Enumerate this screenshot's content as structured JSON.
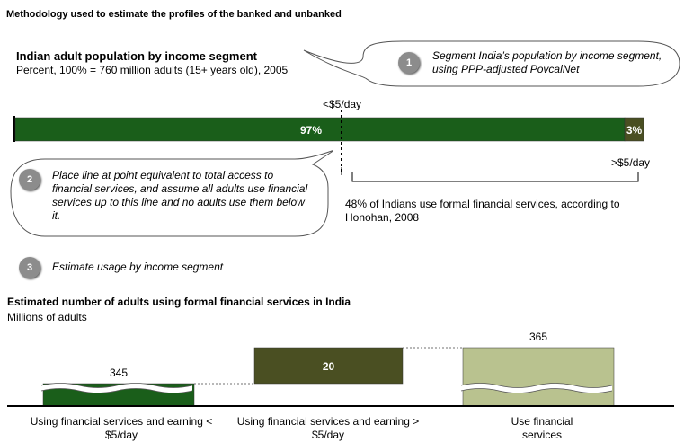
{
  "title": "Methodology used to estimate the profiles of the banked and unbanked",
  "top_chart": {
    "title": "Indian adult population by income segment",
    "subtitle": "Percent, 100% = 760 million adults (15+ years old), 2005",
    "segments": [
      {
        "label": "97%",
        "value": 97,
        "color": "#1a5e1a"
      },
      {
        "label": "3%",
        "value": 3,
        "color": "#4a4f22"
      }
    ],
    "marker_top_label": "<$5/day",
    "marker_right_label": ">$5/day",
    "annotation": "48% of Indians use formal financial services, according to Honohan, 2008"
  },
  "callouts": [
    {
      "number": "1",
      "text": "Segment India’s population by income segment, using PPP-adjusted PovcalNet"
    },
    {
      "number": "2",
      "text": "Place line at point equivalent to total access to financial services, and assume all adults use financial services up to this line and no adults use them below it."
    },
    {
      "number": "3",
      "text": "Estimate usage by income segment"
    }
  ],
  "bottom_chart": {
    "title": "Estimated number of adults using formal financial services in India",
    "subtitle": "Millions of adults"
  },
  "chart_data": [
    {
      "type": "bar",
      "title": "Indian adult population by income segment",
      "subtitle": "Percent, 100% = 760 million adults (15+ years old), 2005",
      "categories": [
        "<$5/day",
        ">$5/day"
      ],
      "values": [
        97,
        3
      ],
      "orientation": "horizontal-stacked",
      "colors": [
        "#1a5e1a",
        "#4a4f22"
      ]
    },
    {
      "type": "bar",
      "subtype": "waterfall",
      "title": "Estimated number of adults using formal financial services in India",
      "subtitle": "Millions of adults",
      "categories": [
        "Using financial services and earning < $5/day",
        "Using financial services and earning > $5/day",
        "Use financial services"
      ],
      "values": [
        345,
        20,
        365
      ],
      "value_labels": [
        "345",
        "20",
        "365"
      ],
      "colors": [
        "#1a5e1a",
        "#4a4f22",
        "#b9c28f"
      ],
      "axis_break": true
    }
  ]
}
